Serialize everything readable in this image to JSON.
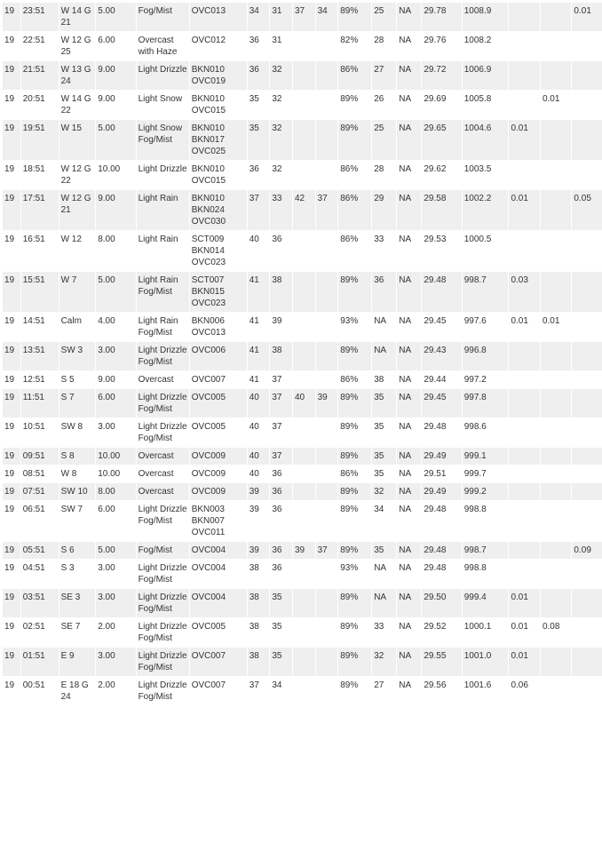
{
  "rows": [
    {
      "c": [
        "19",
        "23:51",
        "W 14 G 21",
        "5.00",
        "Fog/Mist",
        "OVC013",
        "34",
        "31",
        "37",
        "34",
        "89%",
        "25",
        "NA",
        "29.78",
        "1008.9",
        "",
        "",
        "0.01"
      ]
    },
    {
      "c": [
        "19",
        "22:51",
        "W 12 G 25",
        "6.00",
        "Overcast with Haze",
        "OVC012",
        "36",
        "31",
        "",
        "",
        "82%",
        "28",
        "NA",
        "29.76",
        "1008.2",
        "",
        "",
        ""
      ]
    },
    {
      "c": [
        "19",
        "21:51",
        "W 13 G 24",
        "9.00",
        "Light Drizzle",
        "BKN010 OVC019",
        "36",
        "32",
        "",
        "",
        "86%",
        "27",
        "NA",
        "29.72",
        "1006.9",
        "",
        "",
        ""
      ]
    },
    {
      "c": [
        "19",
        "20:51",
        "W 14 G 22",
        "9.00",
        "Light Snow",
        "BKN010 OVC015",
        "35",
        "32",
        "",
        "",
        "89%",
        "26",
        "NA",
        "29.69",
        "1005.8",
        "",
        "0.01",
        ""
      ]
    },
    {
      "c": [
        "19",
        "19:51",
        "W 15",
        "5.00",
        "Light Snow Fog/Mist",
        "BKN010 BKN017 OVC025",
        "35",
        "32",
        "",
        "",
        "89%",
        "25",
        "NA",
        "29.65",
        "1004.6",
        "0.01",
        "",
        ""
      ]
    },
    {
      "c": [
        "19",
        "18:51",
        "W 12 G 22",
        "10.00",
        "Light Drizzle",
        "BKN010 OVC015",
        "36",
        "32",
        "",
        "",
        "86%",
        "28",
        "NA",
        "29.62",
        "1003.5",
        "",
        "",
        ""
      ]
    },
    {
      "c": [
        "19",
        "17:51",
        "W 12 G 21",
        "9.00",
        "Light Rain",
        "BKN010 BKN024 OVC030",
        "37",
        "33",
        "42",
        "37",
        "86%",
        "29",
        "NA",
        "29.58",
        "1002.2",
        "0.01",
        "",
        "0.05"
      ]
    },
    {
      "c": [
        "19",
        "16:51",
        "W 12",
        "8.00",
        "Light Rain",
        "SCT009 BKN014 OVC023",
        "40",
        "36",
        "",
        "",
        "86%",
        "33",
        "NA",
        "29.53",
        "1000.5",
        "",
        "",
        ""
      ]
    },
    {
      "c": [
        "19",
        "15:51",
        "W 7",
        "5.00",
        "Light Rain Fog/Mist",
        "SCT007 BKN015 OVC023",
        "41",
        "38",
        "",
        "",
        "89%",
        "36",
        "NA",
        "29.48",
        "998.7",
        "0.03",
        "",
        ""
      ]
    },
    {
      "c": [
        "19",
        "14:51",
        "Calm",
        "4.00",
        "Light Rain Fog/Mist",
        "BKN006 OVC013",
        "41",
        "39",
        "",
        "",
        "93%",
        "NA",
        "NA",
        "29.45",
        "997.6",
        "0.01",
        "0.01",
        ""
      ]
    },
    {
      "c": [
        "19",
        "13:51",
        "SW 3",
        "3.00",
        "Light Drizzle Fog/Mist",
        "OVC006",
        "41",
        "38",
        "",
        "",
        "89%",
        "NA",
        "NA",
        "29.43",
        "996.8",
        "",
        "",
        ""
      ]
    },
    {
      "c": [
        "19",
        "12:51",
        "S 5",
        "9.00",
        "Overcast",
        "OVC007",
        "41",
        "37",
        "",
        "",
        "86%",
        "38",
        "NA",
        "29.44",
        "997.2",
        "",
        "",
        ""
      ]
    },
    {
      "c": [
        "19",
        "11:51",
        "S 7",
        "6.00",
        "Light Drizzle Fog/Mist",
        "OVC005",
        "40",
        "37",
        "40",
        "39",
        "89%",
        "35",
        "NA",
        "29.45",
        "997.8",
        "",
        "",
        ""
      ]
    },
    {
      "c": [
        "19",
        "10:51",
        "SW 8",
        "3.00",
        "Light Drizzle Fog/Mist",
        "OVC005",
        "40",
        "37",
        "",
        "",
        "89%",
        "35",
        "NA",
        "29.48",
        "998.6",
        "",
        "",
        ""
      ]
    },
    {
      "c": [
        "19",
        "09:51",
        "S 8",
        "10.00",
        "Overcast",
        "OVC009",
        "40",
        "37",
        "",
        "",
        "89%",
        "35",
        "NA",
        "29.49",
        "999.1",
        "",
        "",
        ""
      ]
    },
    {
      "c": [
        "19",
        "08:51",
        "W 8",
        "10.00",
        "Overcast",
        "OVC009",
        "40",
        "36",
        "",
        "",
        "86%",
        "35",
        "NA",
        "29.51",
        "999.7",
        "",
        "",
        ""
      ]
    },
    {
      "c": [
        "19",
        "07:51",
        "SW 10",
        "8.00",
        "Overcast",
        "OVC009",
        "39",
        "36",
        "",
        "",
        "89%",
        "32",
        "NA",
        "29.49",
        "999.2",
        "",
        "",
        ""
      ]
    },
    {
      "c": [
        "19",
        "06:51",
        "SW 7",
        "6.00",
        "Light Drizzle Fog/Mist",
        "BKN003 BKN007 OVC011",
        "39",
        "36",
        "",
        "",
        "89%",
        "34",
        "NA",
        "29.48",
        "998.8",
        "",
        "",
        ""
      ]
    },
    {
      "c": [
        "19",
        "05:51",
        "S 6",
        "5.00",
        "Fog/Mist",
        "OVC004",
        "39",
        "36",
        "39",
        "37",
        "89%",
        "35",
        "NA",
        "29.48",
        "998.7",
        "",
        "",
        "0.09"
      ]
    },
    {
      "c": [
        "19",
        "04:51",
        "S 3",
        "3.00",
        "Light Drizzle Fog/Mist",
        "OVC004",
        "38",
        "36",
        "",
        "",
        "93%",
        "NA",
        "NA",
        "29.48",
        "998.8",
        "",
        "",
        ""
      ]
    },
    {
      "c": [
        "19",
        "03:51",
        "SE 3",
        "3.00",
        "Light Drizzle Fog/Mist",
        "OVC004",
        "38",
        "35",
        "",
        "",
        "89%",
        "NA",
        "NA",
        "29.50",
        "999.4",
        "0.01",
        "",
        ""
      ]
    },
    {
      "c": [
        "19",
        "02:51",
        "SE 7",
        "2.00",
        "Light Drizzle Fog/Mist",
        "OVC005",
        "38",
        "35",
        "",
        "",
        "89%",
        "33",
        "NA",
        "29.52",
        "1000.1",
        "0.01",
        "0.08",
        ""
      ]
    },
    {
      "c": [
        "19",
        "01:51",
        "E 9",
        "3.00",
        "Light Drizzle Fog/Mist",
        "OVC007",
        "38",
        "35",
        "",
        "",
        "89%",
        "32",
        "NA",
        "29.55",
        "1001.0",
        "0.01",
        "",
        ""
      ]
    },
    {
      "c": [
        "19",
        "00:51",
        "E 18 G 24",
        "2.00",
        "Light Drizzle Fog/Mist",
        "OVC007",
        "37",
        "34",
        "",
        "",
        "89%",
        "27",
        "NA",
        "29.56",
        "1001.6",
        "0.06",
        "",
        ""
      ]
    }
  ]
}
